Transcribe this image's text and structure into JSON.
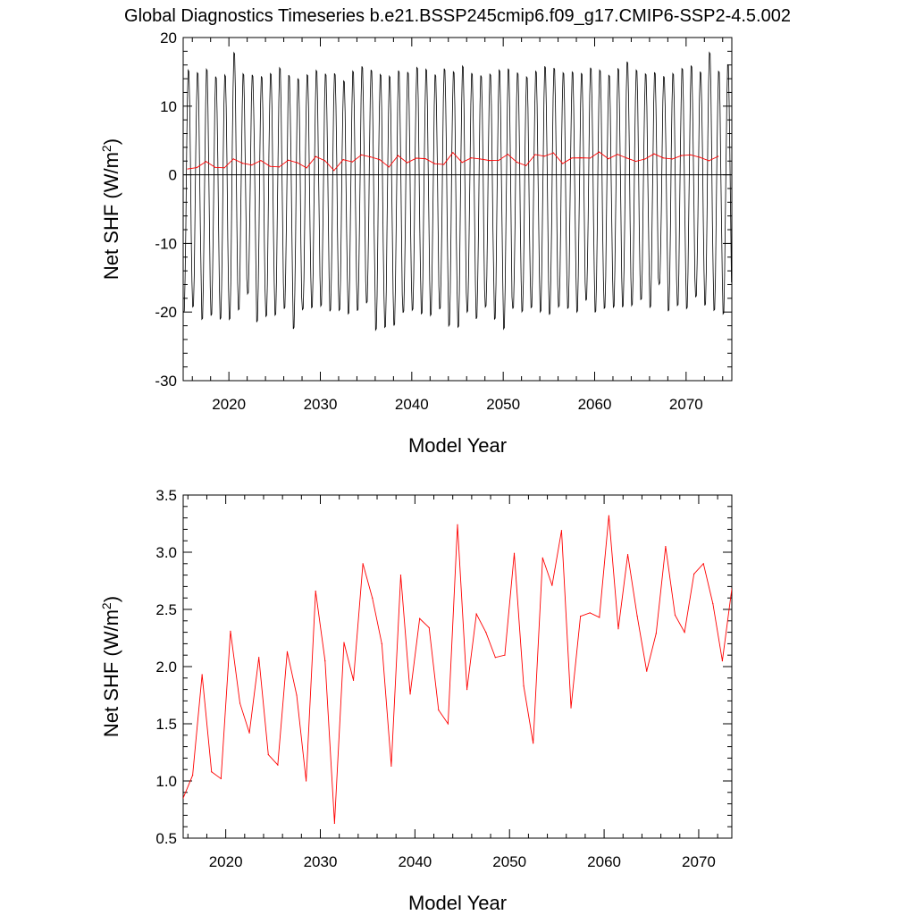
{
  "title": "Global Diagnostics Timeseries b.e21.BSSP245cmip6.f09_g17.CMIP6-SSP2-4.5.002",
  "colors": {
    "monthly": "#000000",
    "annual": "#ff0000",
    "zero_line": "#000000"
  },
  "chart_data": [
    {
      "type": "line",
      "xlabel": "Model Year",
      "ylabel_main": "Net SHF (W/m",
      "ylabel_sup": "2",
      "ylabel_close": ")",
      "xlim": [
        2015,
        2075
      ],
      "ylim": [
        -30,
        20
      ],
      "xticks": [
        2020,
        2030,
        2040,
        2050,
        2060,
        2070
      ],
      "xtick_labels": [
        "2020",
        "2030",
        "2040",
        "2050",
        "2060",
        "2070"
      ],
      "yticks": [
        -30,
        -20,
        -10,
        0,
        10,
        20
      ],
      "ytick_labels": [
        "-30",
        "-20",
        "-10",
        "0",
        "10",
        "20"
      ],
      "reference_line_y": 0,
      "monthly_series": {
        "start_year": 2015,
        "end_year": 2075,
        "annual_max": [
          15.8,
          15.4,
          15.9,
          14.8,
          15.1,
          18.4,
          15.2,
          15.0,
          14.9,
          15.3,
          16.1,
          15.0,
          14.6,
          15.1,
          15.7,
          15.2,
          15.3,
          14.2,
          15.6,
          16.3,
          15.8,
          15.2,
          14.9,
          15.7,
          15.5,
          16.2,
          15.9,
          15.1,
          16.0,
          15.6,
          16.4,
          15.3,
          15.0,
          15.2,
          15.8,
          16.0,
          15.4,
          14.8,
          15.6,
          16.3,
          16.1,
          15.4,
          15.5,
          15.3,
          16.1,
          15.8,
          15.0,
          16.0,
          17.0,
          15.8,
          15.2,
          15.4,
          14.8,
          15.3,
          16.0,
          16.4,
          15.5,
          18.4,
          15.6,
          16.6
        ],
        "annual_min": [
          -20.6,
          -19.8,
          -21.6,
          -21.0,
          -21.6,
          -21.7,
          -20.2,
          -17.8,
          -22.0,
          -21.2,
          -21.0,
          -20.0,
          -23.0,
          -20.2,
          -19.9,
          -19.6,
          -20.4,
          -20.3,
          -20.8,
          -20.3,
          -19.2,
          -23.2,
          -22.8,
          -22.5,
          -20.6,
          -20.3,
          -20.8,
          -21.0,
          -20.1,
          -22.6,
          -22.8,
          -20.5,
          -21.5,
          -19.8,
          -21.6,
          -23.0,
          -20.0,
          -20.5,
          -19.9,
          -20.5,
          -20.9,
          -19.8,
          -20.0,
          -20.5,
          -18.8,
          -20.6,
          -20.0,
          -19.8,
          -19.8,
          -19.6,
          -18.7,
          -19.8,
          -16.4,
          -20.4,
          -19.6,
          -20.0,
          -18.3,
          -19.6,
          -20.3,
          -20.8
        ]
      },
      "series": [
        {
          "x": [
            2015.5,
            2016.5,
            2017.5,
            2018.5,
            2019.5,
            2020.5,
            2021.5,
            2022.5,
            2023.5,
            2024.5,
            2025.5,
            2026.5,
            2027.5,
            2028.5,
            2029.5,
            2030.5,
            2031.5,
            2032.5,
            2033.5,
            2034.5,
            2035.5,
            2036.5,
            2037.5,
            2038.5,
            2039.5,
            2040.5,
            2041.5,
            2042.5,
            2043.5,
            2044.5,
            2045.5,
            2046.5,
            2047.5,
            2048.5,
            2049.5,
            2050.5,
            2051.5,
            2052.5,
            2053.5,
            2054.5,
            2055.5,
            2056.5,
            2057.5,
            2058.5,
            2059.5,
            2060.5,
            2061.5,
            2062.5,
            2063.5,
            2064.5,
            2065.5,
            2066.5,
            2067.5,
            2068.5,
            2069.5,
            2070.5,
            2071.5,
            2072.5,
            2073.5
          ],
          "values": [
            0.85,
            1.05,
            1.93,
            1.08,
            1.02,
            2.31,
            1.68,
            1.42,
            2.08,
            1.23,
            1.14,
            2.13,
            1.75,
            1.0,
            2.66,
            2.05,
            0.63,
            2.21,
            1.88,
            2.9,
            2.6,
            2.2,
            1.13,
            2.8,
            1.76,
            2.42,
            2.34,
            1.62,
            1.5,
            3.24,
            1.8,
            2.46,
            2.3,
            2.08,
            2.1,
            2.99,
            1.83,
            1.33,
            2.95,
            2.71,
            3.19,
            1.64,
            2.44,
            2.47,
            2.43,
            3.32,
            2.33,
            2.98,
            2.44,
            1.96,
            2.29,
            3.05,
            2.45,
            2.3,
            2.81,
            2.9,
            2.55,
            2.05,
            2.68
          ]
        }
      ]
    },
    {
      "type": "line",
      "xlabel": "Model Year",
      "ylabel_main": "Net SHF (W/m",
      "ylabel_sup": "2",
      "ylabel_close": ")",
      "xlim": [
        2015.5,
        2073.5
      ],
      "ylim": [
        0.5,
        3.5
      ],
      "xticks": [
        2020,
        2030,
        2040,
        2050,
        2060,
        2070
      ],
      "xtick_labels": [
        "2020",
        "2030",
        "2040",
        "2050",
        "2060",
        "2070"
      ],
      "yticks": [
        0.5,
        1.0,
        1.5,
        2.0,
        2.5,
        3.0,
        3.5
      ],
      "ytick_labels": [
        "0.5",
        "1.0",
        "1.5",
        "2.0",
        "2.5",
        "3.0",
        "3.5"
      ],
      "series": [
        {
          "x": [
            2015.5,
            2016.5,
            2017.5,
            2018.5,
            2019.5,
            2020.5,
            2021.5,
            2022.5,
            2023.5,
            2024.5,
            2025.5,
            2026.5,
            2027.5,
            2028.5,
            2029.5,
            2030.5,
            2031.5,
            2032.5,
            2033.5,
            2034.5,
            2035.5,
            2036.5,
            2037.5,
            2038.5,
            2039.5,
            2040.5,
            2041.5,
            2042.5,
            2043.5,
            2044.5,
            2045.5,
            2046.5,
            2047.5,
            2048.5,
            2049.5,
            2050.5,
            2051.5,
            2052.5,
            2053.5,
            2054.5,
            2055.5,
            2056.5,
            2057.5,
            2058.5,
            2059.5,
            2060.5,
            2061.5,
            2062.5,
            2063.5,
            2064.5,
            2065.5,
            2066.5,
            2067.5,
            2068.5,
            2069.5,
            2070.5,
            2071.5,
            2072.5,
            2073.5
          ],
          "values": [
            0.85,
            1.05,
            1.93,
            1.08,
            1.02,
            2.31,
            1.68,
            1.42,
            2.08,
            1.23,
            1.14,
            2.13,
            1.75,
            1.0,
            2.66,
            2.05,
            0.63,
            2.21,
            1.88,
            2.9,
            2.6,
            2.2,
            1.13,
            2.8,
            1.76,
            2.42,
            2.34,
            1.62,
            1.5,
            3.24,
            1.8,
            2.46,
            2.3,
            2.08,
            2.1,
            2.99,
            1.83,
            1.33,
            2.95,
            2.71,
            3.19,
            1.64,
            2.44,
            2.47,
            2.43,
            3.32,
            2.33,
            2.98,
            2.44,
            1.96,
            2.29,
            3.05,
            2.45,
            2.3,
            2.81,
            2.9,
            2.55,
            2.05,
            2.68
          ]
        }
      ]
    }
  ]
}
